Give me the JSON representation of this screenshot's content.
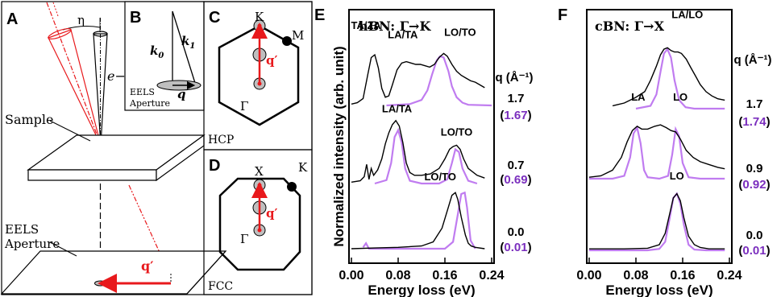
{
  "panels": {
    "A": {
      "letter": "A",
      "eta": "η",
      "beam": "e−",
      "sample": "Sample",
      "aperture_line1": "EELS",
      "aperture_line2": "Aperture",
      "qprime": "q′"
    },
    "B": {
      "letter": "B",
      "k0": "k",
      "k0_sub": "0",
      "k1": "k",
      "k1_sub": "1",
      "q": "q",
      "aperture_line1": "EELS",
      "aperture_line2": "Aperture"
    },
    "C": {
      "letter": "C",
      "top_point": "K",
      "corner_point": "M",
      "center": "Γ",
      "qprime": "q′",
      "lattice": "HCP"
    },
    "D": {
      "letter": "D",
      "top_point": "X",
      "corner_point": "K",
      "center": "Γ",
      "qprime": "q′",
      "lattice": "FCC"
    }
  },
  "colors": {
    "experiment": "#000000",
    "theory": "#c07cf0",
    "red": "#e8191c",
    "purple_text": "#7b2fbe",
    "gray_disk": "#bfbfbf"
  },
  "chart_data": [
    {
      "panel": "E",
      "type": "line",
      "title": "hBN: Γ→K",
      "xlabel": "Energy loss (eV)",
      "ylabel": "Normalized intensity (arb. unit)",
      "xlim": [
        0.0,
        0.24
      ],
      "xticks": [
        "0.00",
        "0.08",
        "0.16",
        "0.24"
      ],
      "xtick_values": [
        0.0,
        0.08,
        0.16,
        0.24
      ],
      "q_header": "q (Å⁻¹)",
      "spectra": [
        {
          "q_exp": "1.7",
          "q_theory": "1.67",
          "labels": [
            {
              "text": "TA/ZA",
              "x": 0.025,
              "y": 1.12
            },
            {
              "text": "LA/TA",
              "x": 0.088,
              "y": 0.98
            },
            {
              "text": "LO/TO",
              "x": 0.186,
              "y": 1.02
            }
          ],
          "experiment": {
            "x": [
              0.0,
              0.01,
              0.02,
              0.028,
              0.034,
              0.04,
              0.046,
              0.052,
              0.058,
              0.064,
              0.07,
              0.078,
              0.086,
              0.094,
              0.102,
              0.11,
              0.118,
              0.126,
              0.134,
              0.142,
              0.15,
              0.158,
              0.164,
              0.172,
              0.18,
              0.188,
              0.196,
              0.204,
              0.212,
              0.22,
              0.228
            ],
            "y": [
              0.02,
              0.04,
              0.1,
              0.45,
              0.7,
              0.74,
              0.55,
              0.25,
              0.12,
              0.14,
              0.3,
              0.52,
              0.62,
              0.64,
              0.62,
              0.6,
              0.6,
              0.58,
              0.56,
              0.6,
              0.7,
              0.76,
              0.72,
              0.6,
              0.5,
              0.44,
              0.4,
              0.36,
              0.34,
              0.3,
              0.26
            ]
          },
          "theory": {
            "x": [
              0.06,
              0.1,
              0.12,
              0.13,
              0.138,
              0.146,
              0.152,
              0.158,
              0.166,
              0.172,
              0.18,
              0.19,
              0.2,
              0.24
            ],
            "y": [
              0.0,
              0.02,
              0.08,
              0.22,
              0.45,
              0.66,
              0.72,
              0.7,
              0.5,
              0.28,
              0.12,
              0.04,
              0.01,
              0.0
            ]
          }
        },
        {
          "q_exp": "0.7",
          "q_theory": "0.69",
          "labels": [
            {
              "text": "LA/TA",
              "x": 0.078,
              "y": 1.04
            },
            {
              "text": "LO/TO",
              "x": 0.18,
              "y": 0.7
            }
          ],
          "experiment": {
            "x": [
              0.0,
              0.015,
              0.022,
              0.026,
              0.03,
              0.034,
              0.038,
              0.045,
              0.052,
              0.058,
              0.064,
              0.07,
              0.076,
              0.082,
              0.088,
              0.094,
              0.1,
              0.108,
              0.12,
              0.135,
              0.15,
              0.16,
              0.168,
              0.174,
              0.18,
              0.186,
              0.192,
              0.2,
              0.215,
              0.228
            ],
            "y": [
              0.02,
              0.04,
              0.1,
              0.28,
              0.06,
              0.22,
              0.12,
              0.2,
              0.36,
              0.58,
              0.74,
              0.86,
              0.92,
              0.84,
              0.6,
              0.3,
              0.16,
              0.12,
              0.12,
              0.14,
              0.22,
              0.36,
              0.5,
              0.54,
              0.56,
              0.5,
              0.36,
              0.22,
              0.12,
              0.08
            ]
          },
          "theory": {
            "x": [
              0.04,
              0.06,
              0.068,
              0.074,
              0.08,
              0.086,
              0.092,
              0.1,
              0.12,
              0.15,
              0.164,
              0.172,
              0.178,
              0.184,
              0.19,
              0.2,
              0.215
            ],
            "y": [
              0.0,
              0.05,
              0.3,
              0.68,
              0.78,
              0.6,
              0.22,
              0.04,
              0.0,
              0.0,
              0.06,
              0.3,
              0.5,
              0.46,
              0.22,
              0.04,
              0.0
            ]
          }
        },
        {
          "q_exp": "0.0",
          "q_theory": "0.01",
          "labels": [
            {
              "text": "LO/TO",
              "x": 0.152,
              "y": 1.0
            }
          ],
          "experiment": {
            "x": [
              0.0,
              0.04,
              0.08,
              0.12,
              0.14,
              0.155,
              0.165,
              0.172,
              0.178,
              0.182,
              0.188,
              0.195,
              0.2,
              0.205,
              0.212,
              0.228
            ],
            "y": [
              0.0,
              0.01,
              0.02,
              0.04,
              0.1,
              0.3,
              0.58,
              0.78,
              0.82,
              0.72,
              0.46,
              0.2,
              0.08,
              0.04,
              0.02,
              0.0
            ]
          },
          "theory": {
            "x": [
              0.02,
              0.025,
              0.03,
              0.16,
              0.174,
              0.182,
              0.188,
              0.194,
              0.198,
              0.204,
              0.212
            ],
            "y": [
              0.02,
              0.08,
              0.0,
              0.0,
              0.1,
              0.5,
              0.8,
              0.82,
              0.6,
              0.12,
              0.0
            ]
          }
        }
      ]
    },
    {
      "panel": "F",
      "type": "line",
      "title": "cBN: Γ→X",
      "xlabel": "Energy loss (eV)",
      "ylabel": "",
      "xlim": [
        0.0,
        0.24
      ],
      "xticks": [
        "0.00",
        "0.08",
        "0.16",
        "0.24"
      ],
      "xtick_values": [
        0.0,
        0.08,
        0.16,
        0.24
      ],
      "q_header": "q (Å⁻¹)",
      "spectra": [
        {
          "q_exp": "1.7",
          "q_theory": "1.74",
          "labels": [
            {
              "text": "LA/LO",
              "x": 0.168,
              "y": 1.28
            }
          ],
          "experiment": {
            "x": [
              0.04,
              0.06,
              0.08,
              0.095,
              0.105,
              0.115,
              0.122,
              0.128,
              0.134,
              0.14,
              0.146,
              0.152,
              0.158,
              0.166,
              0.174,
              0.182,
              0.19,
              0.2,
              0.21,
              0.22,
              0.232
            ],
            "y": [
              0.04,
              0.08,
              0.16,
              0.24,
              0.4,
              0.6,
              0.76,
              0.84,
              0.86,
              0.82,
              0.8,
              0.8,
              0.78,
              0.7,
              0.58,
              0.46,
              0.34,
              0.24,
              0.18,
              0.14,
              0.12
            ]
          },
          "theory": {
            "x": [
              0.08,
              0.105,
              0.115,
              0.122,
              0.128,
              0.134,
              0.14,
              0.146,
              0.154,
              0.165,
              0.18,
              0.232
            ],
            "y": [
              0.0,
              0.04,
              0.2,
              0.52,
              0.78,
              0.84,
              0.72,
              0.4,
              0.12,
              0.02,
              0.0,
              0.0
            ]
          }
        },
        {
          "q_exp": "0.9",
          "q_theory": "0.92",
          "labels": [
            {
              "text": "LA",
              "x": 0.084,
              "y": 1.1
            },
            {
              "text": "LO",
              "x": 0.156,
              "y": 1.1
            }
          ],
          "experiment": {
            "x": [
              0.0,
              0.02,
              0.04,
              0.055,
              0.065,
              0.074,
              0.082,
              0.09,
              0.1,
              0.112,
              0.122,
              0.132,
              0.14,
              0.148,
              0.156,
              0.166,
              0.178,
              0.19,
              0.205,
              0.22,
              0.232
            ],
            "y": [
              0.02,
              0.04,
              0.12,
              0.3,
              0.52,
              0.68,
              0.74,
              0.7,
              0.7,
              0.74,
              0.76,
              0.72,
              0.68,
              0.66,
              0.56,
              0.4,
              0.3,
              0.24,
              0.2,
              0.16,
              0.14
            ]
          },
          "theory": {
            "x": [
              0.0,
              0.04,
              0.06,
              0.07,
              0.076,
              0.082,
              0.088,
              0.094,
              0.1,
              0.12,
              0.135,
              0.142,
              0.148,
              0.154,
              0.16,
              0.17,
              0.19,
              0.232
            ],
            "y": [
              0.0,
              0.0,
              0.04,
              0.3,
              0.64,
              0.72,
              0.5,
              0.12,
              0.02,
              0.0,
              0.04,
              0.34,
              0.7,
              0.6,
              0.22,
              0.02,
              0.0,
              0.0
            ]
          }
        },
        {
          "q_exp": "0.0",
          "q_theory": "0.01",
          "labels": [
            {
              "text": "LO",
              "x": 0.15,
              "y": 1.0
            }
          ],
          "experiment": {
            "x": [
              0.0,
              0.06,
              0.1,
              0.12,
              0.13,
              0.138,
              0.144,
              0.15,
              0.156,
              0.162,
              0.17,
              0.18,
              0.19,
              0.205,
              0.232
            ],
            "y": [
              0.02,
              0.02,
              0.03,
              0.08,
              0.24,
              0.52,
              0.74,
              0.8,
              0.7,
              0.46,
              0.2,
              0.08,
              0.04,
              0.02,
              0.02
            ]
          },
          "theory": {
            "x": [
              0.0,
              0.1,
              0.12,
              0.13,
              0.138,
              0.144,
              0.15,
              0.156,
              0.162,
              0.17,
              0.18,
              0.2,
              0.232
            ],
            "y": [
              0.0,
              0.0,
              0.02,
              0.12,
              0.46,
              0.74,
              0.8,
              0.66,
              0.36,
              0.08,
              0.01,
              0.0,
              0.0
            ]
          }
        }
      ]
    }
  ],
  "panel_letters": {
    "E": "E",
    "F": "F"
  }
}
